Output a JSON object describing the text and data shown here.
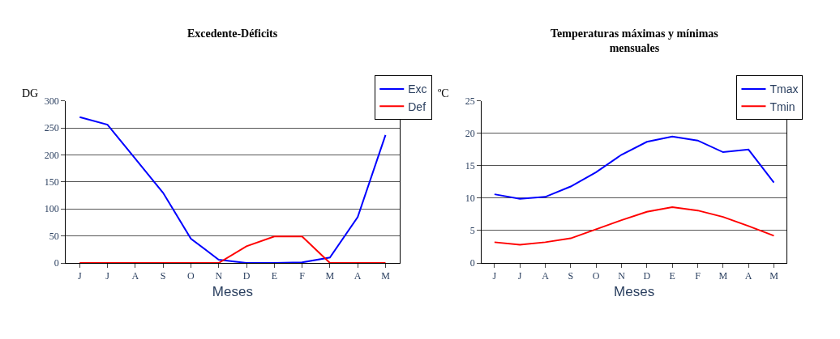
{
  "chart_data": [
    {
      "type": "line",
      "title": "Excedente-Déficits",
      "xlabel": "Meses",
      "ylabel": "DG",
      "categories": [
        "J",
        "J",
        "A",
        "S",
        "O",
        "N",
        "D",
        "E",
        "F",
        "M",
        "A",
        "M"
      ],
      "series": [
        {
          "name": "Exc",
          "color": "#0000ff",
          "values": [
            270,
            256,
            193,
            130,
            45,
            6,
            0,
            0,
            1,
            10,
            85,
            237
          ]
        },
        {
          "name": "Def",
          "color": "#ff0000",
          "values": [
            0,
            0,
            0,
            0,
            0,
            0,
            31,
            49,
            49,
            0,
            0,
            0
          ]
        }
      ],
      "ylim": [
        0,
        300
      ],
      "yticks": [
        0,
        50,
        100,
        150,
        200,
        250,
        300
      ],
      "grid": "y",
      "legend": "top right",
      "marker": "none",
      "line_style": "solid"
    },
    {
      "type": "line",
      "title": "Temperaturas máximas y mínimas mensuales",
      "xlabel": "Meses",
      "ylabel": "ºC",
      "categories": [
        "J",
        "J",
        "A",
        "S",
        "O",
        "N",
        "D",
        "E",
        "F",
        "M",
        "A",
        "M"
      ],
      "series": [
        {
          "name": "Tmax",
          "color": "#0000ff",
          "values": [
            10.6,
            9.9,
            10.2,
            11.8,
            14.0,
            16.7,
            18.7,
            19.5,
            18.9,
            17.1,
            17.5,
            12.4
          ]
        },
        {
          "name": "Tmin",
          "color": "#ff0000",
          "values": [
            3.2,
            2.8,
            3.2,
            3.8,
            5.2,
            6.6,
            7.9,
            8.6,
            8.1,
            7.1,
            5.7,
            4.2
          ]
        }
      ],
      "ylim": [
        0,
        25
      ],
      "yticks": [
        0,
        5,
        10,
        15,
        20,
        25
      ],
      "grid": "y",
      "legend": "top right",
      "marker": "none",
      "line_style": "solid"
    }
  ]
}
